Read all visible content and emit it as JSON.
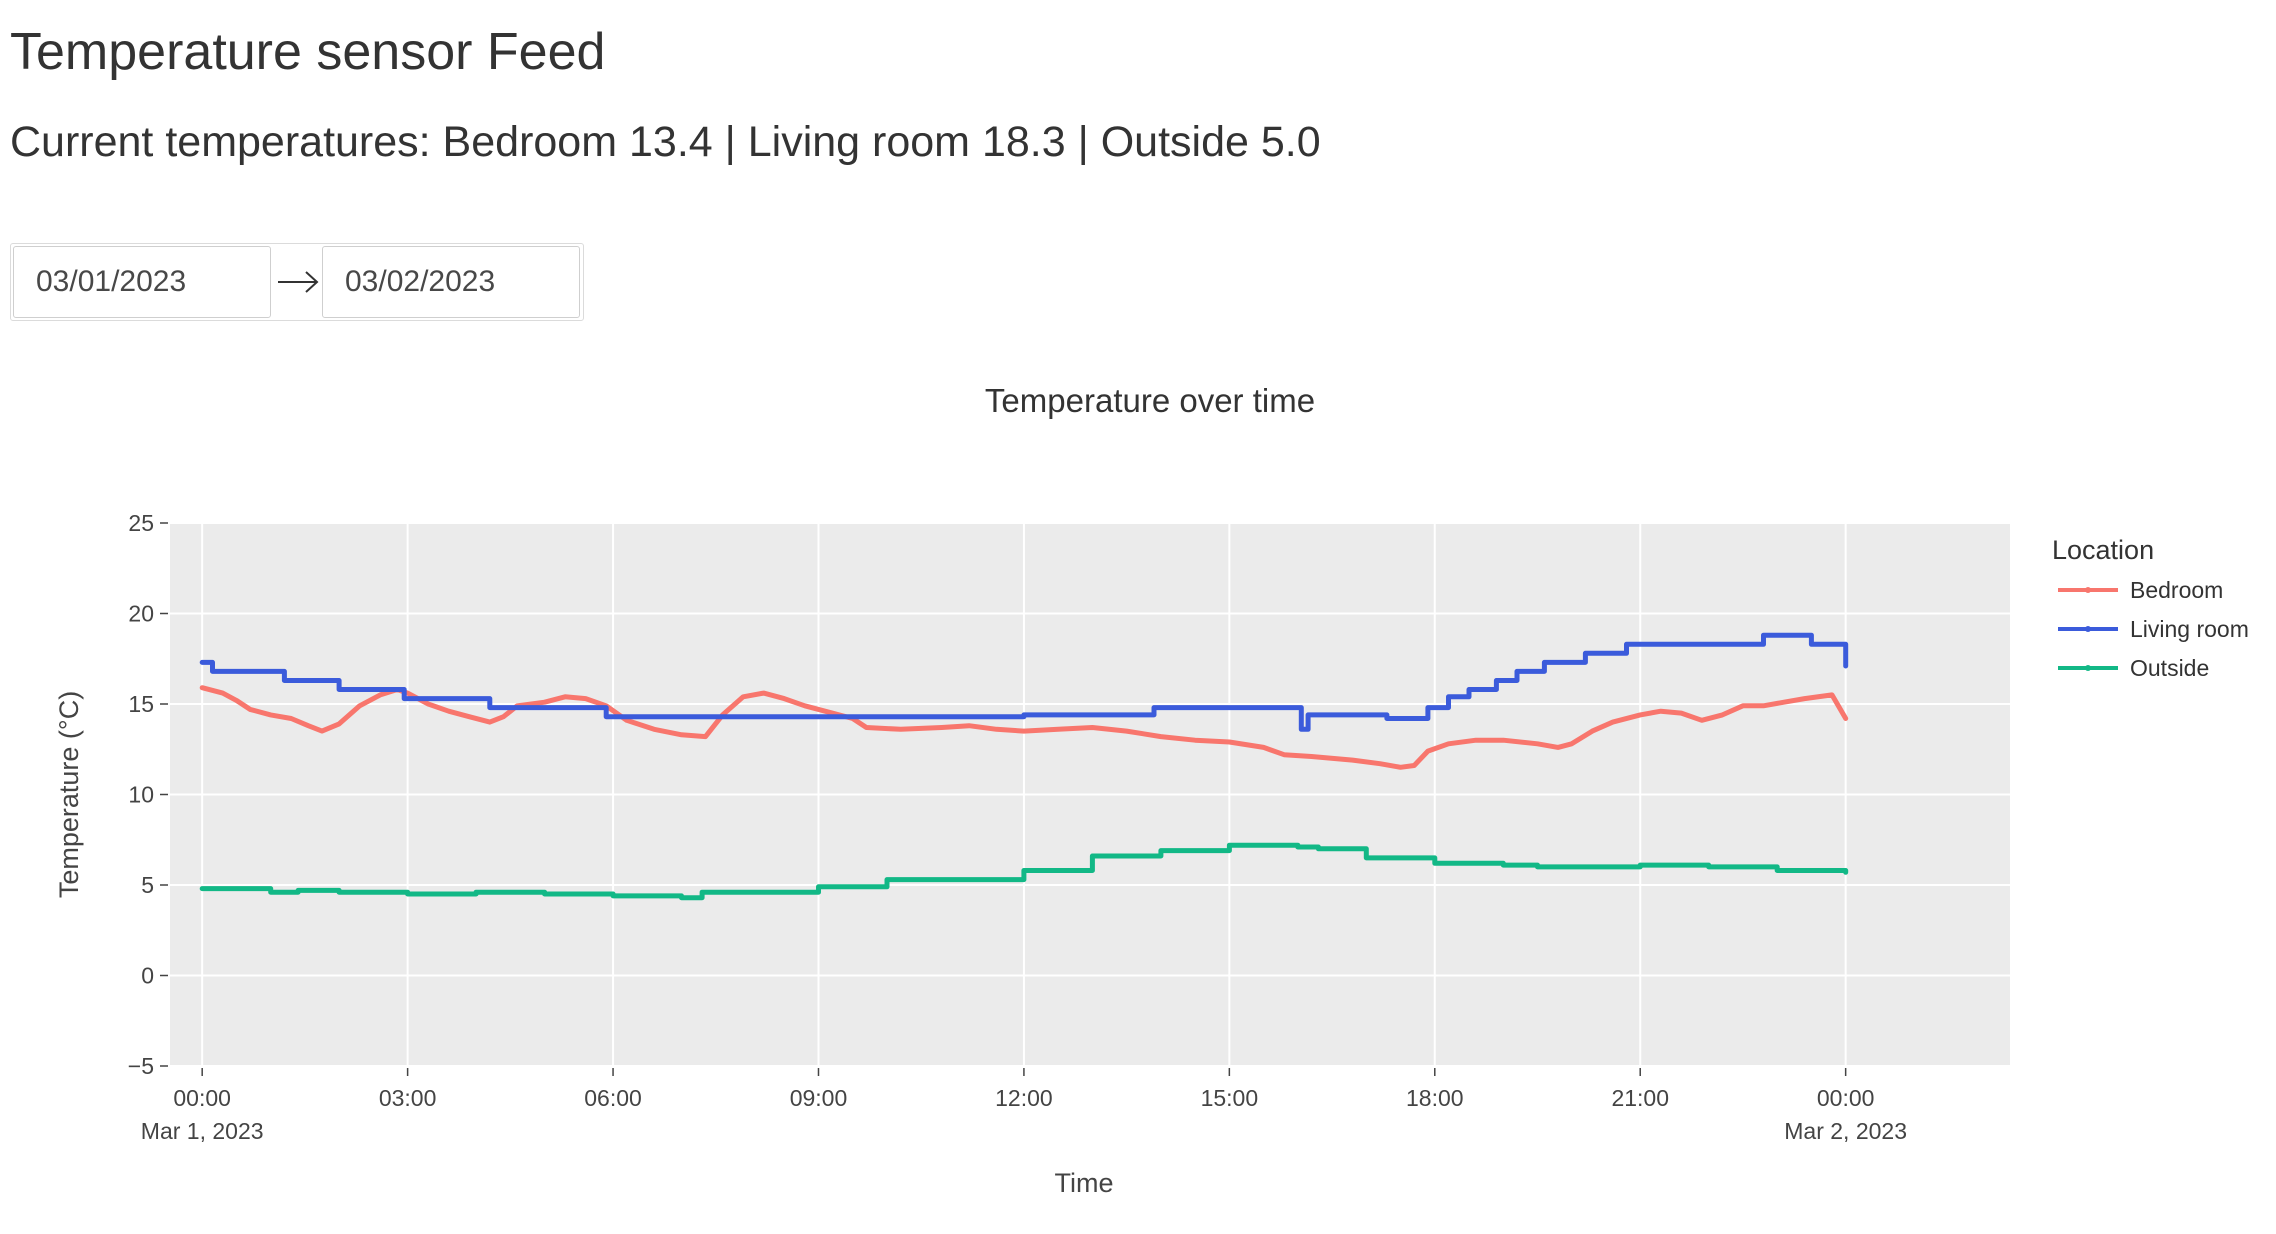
{
  "header": {
    "title": "Temperature sensor Feed",
    "current_line": "Current temperatures: Bedroom 13.4 | Living room 18.3 | Outside 5.0"
  },
  "date_range": {
    "start": "03/01/2023",
    "end": "03/02/2023",
    "arrow_icon": "arrow-right-icon"
  },
  "chart_data": {
    "type": "line",
    "title": "Temperature over time",
    "xlabel": "Time",
    "ylabel": "Temperature (°C)",
    "ylim": [
      -5,
      25
    ],
    "y_ticks": [
      -5,
      0,
      5,
      10,
      15,
      20,
      25
    ],
    "y_tick_labels": [
      "−5",
      "0",
      "5",
      "10",
      "15",
      "20",
      "25"
    ],
    "xlim_hours": [
      -0.47,
      26.4
    ],
    "x_ticks": [
      {
        "hour": 0,
        "label": "00:00",
        "sub": "Mar 1, 2023"
      },
      {
        "hour": 3,
        "label": "03:00",
        "sub": ""
      },
      {
        "hour": 6,
        "label": "06:00",
        "sub": ""
      },
      {
        "hour": 9,
        "label": "09:00",
        "sub": ""
      },
      {
        "hour": 12,
        "label": "12:00",
        "sub": ""
      },
      {
        "hour": 15,
        "label": "15:00",
        "sub": ""
      },
      {
        "hour": 18,
        "label": "18:00",
        "sub": ""
      },
      {
        "hour": 21,
        "label": "21:00",
        "sub": ""
      },
      {
        "hour": 24,
        "label": "00:00",
        "sub": "Mar 2, 2023"
      }
    ],
    "grid": true,
    "background": "#ebebeb",
    "legend": {
      "title": "Location",
      "position": "right"
    },
    "series": [
      {
        "name": "Bedroom",
        "color": "#f8766d",
        "step": false,
        "points": [
          [
            0,
            15.9
          ],
          [
            0.3,
            15.6
          ],
          [
            0.5,
            15.2
          ],
          [
            0.7,
            14.7
          ],
          [
            1.0,
            14.4
          ],
          [
            1.3,
            14.2
          ],
          [
            1.55,
            13.8
          ],
          [
            1.75,
            13.5
          ],
          [
            2.0,
            13.9
          ],
          [
            2.3,
            14.9
          ],
          [
            2.6,
            15.5
          ],
          [
            2.85,
            15.8
          ],
          [
            3.0,
            15.6
          ],
          [
            3.3,
            15.0
          ],
          [
            3.6,
            14.6
          ],
          [
            3.9,
            14.3
          ],
          [
            4.2,
            14.0
          ],
          [
            4.4,
            14.3
          ],
          [
            4.6,
            14.9
          ],
          [
            5.0,
            15.1
          ],
          [
            5.3,
            15.4
          ],
          [
            5.6,
            15.3
          ],
          [
            5.9,
            14.9
          ],
          [
            6.2,
            14.1
          ],
          [
            6.6,
            13.6
          ],
          [
            7.0,
            13.3
          ],
          [
            7.35,
            13.2
          ],
          [
            7.6,
            14.4
          ],
          [
            7.9,
            15.4
          ],
          [
            8.2,
            15.6
          ],
          [
            8.5,
            15.3
          ],
          [
            8.8,
            14.9
          ],
          [
            9.2,
            14.5
          ],
          [
            9.5,
            14.2
          ],
          [
            9.7,
            13.7
          ],
          [
            10.2,
            13.6
          ],
          [
            10.8,
            13.7
          ],
          [
            11.2,
            13.8
          ],
          [
            11.6,
            13.6
          ],
          [
            12.0,
            13.5
          ],
          [
            12.5,
            13.6
          ],
          [
            13.0,
            13.7
          ],
          [
            13.5,
            13.5
          ],
          [
            14.0,
            13.2
          ],
          [
            14.5,
            13.0
          ],
          [
            15.0,
            12.9
          ],
          [
            15.5,
            12.6
          ],
          [
            15.8,
            12.2
          ],
          [
            16.2,
            12.1
          ],
          [
            16.8,
            11.9
          ],
          [
            17.2,
            11.7
          ],
          [
            17.5,
            11.5
          ],
          [
            17.7,
            11.6
          ],
          [
            17.9,
            12.4
          ],
          [
            18.2,
            12.8
          ],
          [
            18.6,
            13.0
          ],
          [
            19.0,
            13.0
          ],
          [
            19.5,
            12.8
          ],
          [
            19.8,
            12.6
          ],
          [
            20.0,
            12.8
          ],
          [
            20.3,
            13.5
          ],
          [
            20.6,
            14.0
          ],
          [
            21.0,
            14.4
          ],
          [
            21.3,
            14.6
          ],
          [
            21.6,
            14.5
          ],
          [
            21.9,
            14.1
          ],
          [
            22.2,
            14.4
          ],
          [
            22.5,
            14.9
          ],
          [
            22.8,
            14.9
          ],
          [
            23.1,
            15.1
          ],
          [
            23.4,
            15.3
          ],
          [
            23.8,
            15.5
          ],
          [
            24.0,
            14.2
          ]
        ]
      },
      {
        "name": "Living room",
        "color": "#3b5bdb",
        "step": true,
        "points": [
          [
            0,
            17.3
          ],
          [
            0.15,
            16.8
          ],
          [
            1.2,
            16.3
          ],
          [
            2.0,
            15.8
          ],
          [
            2.95,
            15.3
          ],
          [
            4.2,
            14.8
          ],
          [
            5.9,
            14.3
          ],
          [
            7.8,
            14.3
          ],
          [
            12.0,
            14.4
          ],
          [
            13.9,
            14.8
          ],
          [
            15.5,
            14.8
          ],
          [
            16.05,
            13.6
          ],
          [
            16.15,
            14.4
          ],
          [
            17.3,
            14.2
          ],
          [
            17.9,
            14.8
          ],
          [
            18.2,
            15.4
          ],
          [
            18.5,
            15.8
          ],
          [
            18.9,
            16.3
          ],
          [
            19.2,
            16.8
          ],
          [
            19.6,
            17.3
          ],
          [
            20.2,
            17.8
          ],
          [
            20.8,
            18.3
          ],
          [
            22.8,
            18.8
          ],
          [
            23.5,
            18.3
          ],
          [
            24.0,
            17.8
          ],
          [
            24.0,
            17.1
          ]
        ]
      },
      {
        "name": "Outside",
        "color": "#12b886",
        "step": true,
        "points": [
          [
            0,
            4.8
          ],
          [
            1.0,
            4.6
          ],
          [
            1.4,
            4.7
          ],
          [
            2.0,
            4.6
          ],
          [
            3.0,
            4.5
          ],
          [
            4.0,
            4.6
          ],
          [
            5.0,
            4.5
          ],
          [
            6.0,
            4.4
          ],
          [
            7.0,
            4.3
          ],
          [
            7.3,
            4.6
          ],
          [
            9.0,
            4.9
          ],
          [
            10.0,
            5.3
          ],
          [
            12.0,
            5.8
          ],
          [
            13.0,
            6.6
          ],
          [
            14.0,
            6.9
          ],
          [
            15.0,
            7.2
          ],
          [
            16.0,
            7.1
          ],
          [
            16.3,
            7.0
          ],
          [
            17.0,
            6.5
          ],
          [
            18.0,
            6.2
          ],
          [
            19.0,
            6.1
          ],
          [
            19.5,
            6.0
          ],
          [
            21.0,
            6.1
          ],
          [
            22.0,
            6.0
          ],
          [
            23.0,
            5.8
          ],
          [
            24.0,
            5.7
          ]
        ]
      }
    ]
  }
}
